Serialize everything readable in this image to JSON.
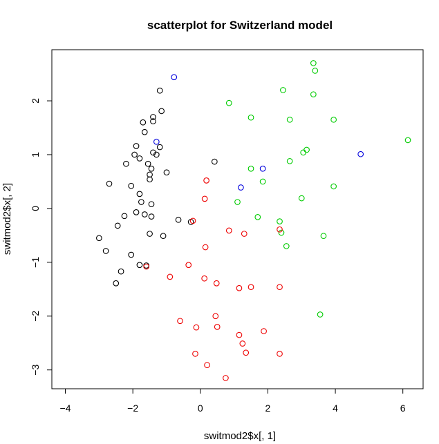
{
  "chart_data": {
    "type": "scatter",
    "title": "scatterplot for Switzerland model",
    "xlabel": "switmod2$x[, 1]",
    "ylabel": "switmod2$x[, 2]",
    "xlim": [
      -4.4,
      6.6
    ],
    "ylim": [
      -3.35,
      2.95
    ],
    "x_ticks": [
      -4,
      -2,
      0,
      2,
      4,
      6
    ],
    "y_ticks": [
      -3,
      -2,
      -1,
      0,
      1,
      2
    ],
    "x_tick_labels": [
      "−4",
      "−2",
      "0",
      "2",
      "4",
      "6"
    ],
    "y_tick_labels": [
      "−3",
      "−2",
      "−1",
      "0",
      "1",
      "2"
    ],
    "grid": false,
    "legend": "none",
    "series": [
      {
        "color": "#000000",
        "points": [
          [
            -1.2,
            2.19
          ],
          [
            -1.4,
            1.7
          ],
          [
            -1.15,
            1.81
          ],
          [
            -1.7,
            1.6
          ],
          [
            -1.65,
            1.42
          ],
          [
            -1.4,
            1.62
          ],
          [
            -1.9,
            1.16
          ],
          [
            -1.2,
            1.14
          ],
          [
            -1.95,
            1.0
          ],
          [
            -1.4,
            1.04
          ],
          [
            -1.3,
            1.0
          ],
          [
            -1.8,
            0.93
          ],
          [
            -2.2,
            0.83
          ],
          [
            -1.55,
            0.83
          ],
          [
            -1.45,
            0.74
          ],
          [
            -1.0,
            0.67
          ],
          [
            -1.5,
            0.63
          ],
          [
            -1.5,
            0.54
          ],
          [
            -2.7,
            0.46
          ],
          [
            -2.05,
            0.42
          ],
          [
            0.42,
            0.87
          ],
          [
            -1.8,
            0.27
          ],
          [
            -1.45,
            0.08
          ],
          [
            -1.75,
            0.12
          ],
          [
            -2.25,
            -0.14
          ],
          [
            -1.9,
            -0.07
          ],
          [
            -1.65,
            -0.11
          ],
          [
            -1.45,
            -0.15
          ],
          [
            -0.65,
            -0.21
          ],
          [
            -2.45,
            -0.32
          ],
          [
            -1.5,
            -0.47
          ],
          [
            -1.1,
            -0.51
          ],
          [
            -3.0,
            -0.55
          ],
          [
            -2.8,
            -0.79
          ],
          [
            -2.05,
            -0.86
          ],
          [
            -1.8,
            -1.05
          ],
          [
            -1.6,
            -1.06
          ],
          [
            -2.35,
            -1.17
          ],
          [
            -2.5,
            -1.39
          ],
          [
            -0.28,
            -0.25
          ]
        ]
      },
      {
        "color": "#0000dd",
        "points": [
          [
            -0.78,
            2.44
          ],
          [
            -1.3,
            1.24
          ],
          [
            4.75,
            1.01
          ],
          [
            1.85,
            0.74
          ],
          [
            1.2,
            0.39
          ]
        ]
      },
      {
        "color": "#00cc00",
        "points": [
          [
            3.35,
            2.7
          ],
          [
            3.4,
            2.56
          ],
          [
            2.45,
            2.2
          ],
          [
            3.35,
            2.12
          ],
          [
            0.85,
            1.96
          ],
          [
            1.5,
            1.69
          ],
          [
            2.65,
            1.65
          ],
          [
            3.95,
            1.65
          ],
          [
            6.15,
            1.27
          ],
          [
            3.15,
            1.09
          ],
          [
            3.05,
            1.04
          ],
          [
            2.65,
            0.88
          ],
          [
            1.5,
            0.74
          ],
          [
            1.85,
            0.5
          ],
          [
            3.95,
            0.41
          ],
          [
            3.0,
            0.19
          ],
          [
            1.1,
            0.12
          ],
          [
            1.7,
            -0.16
          ],
          [
            2.35,
            -0.24
          ],
          [
            2.4,
            -0.45
          ],
          [
            3.65,
            -0.51
          ],
          [
            2.55,
            -0.7
          ],
          [
            3.55,
            -1.97
          ]
        ]
      },
      {
        "color": "#ee0000",
        "points": [
          [
            0.18,
            0.52
          ],
          [
            0.13,
            0.18
          ],
          [
            -0.22,
            -0.23
          ],
          [
            0.85,
            -0.41
          ],
          [
            1.3,
            -0.47
          ],
          [
            2.35,
            -0.39
          ],
          [
            0.15,
            -0.72
          ],
          [
            -0.35,
            -1.05
          ],
          [
            -0.9,
            -1.27
          ],
          [
            0.12,
            -1.3
          ],
          [
            0.48,
            -1.39
          ],
          [
            1.15,
            -1.48
          ],
          [
            1.5,
            -1.46
          ],
          [
            2.35,
            -1.46
          ],
          [
            0.45,
            -2.0
          ],
          [
            -0.6,
            -2.09
          ],
          [
            -0.12,
            -2.21
          ],
          [
            0.5,
            -2.2
          ],
          [
            1.88,
            -2.28
          ],
          [
            1.15,
            -2.35
          ],
          [
            1.25,
            -2.51
          ],
          [
            -0.15,
            -2.7
          ],
          [
            1.35,
            -2.68
          ],
          [
            2.35,
            -2.7
          ],
          [
            0.2,
            -2.91
          ],
          [
            0.75,
            -3.15
          ],
          [
            -1.6,
            -1.08
          ]
        ]
      }
    ]
  }
}
